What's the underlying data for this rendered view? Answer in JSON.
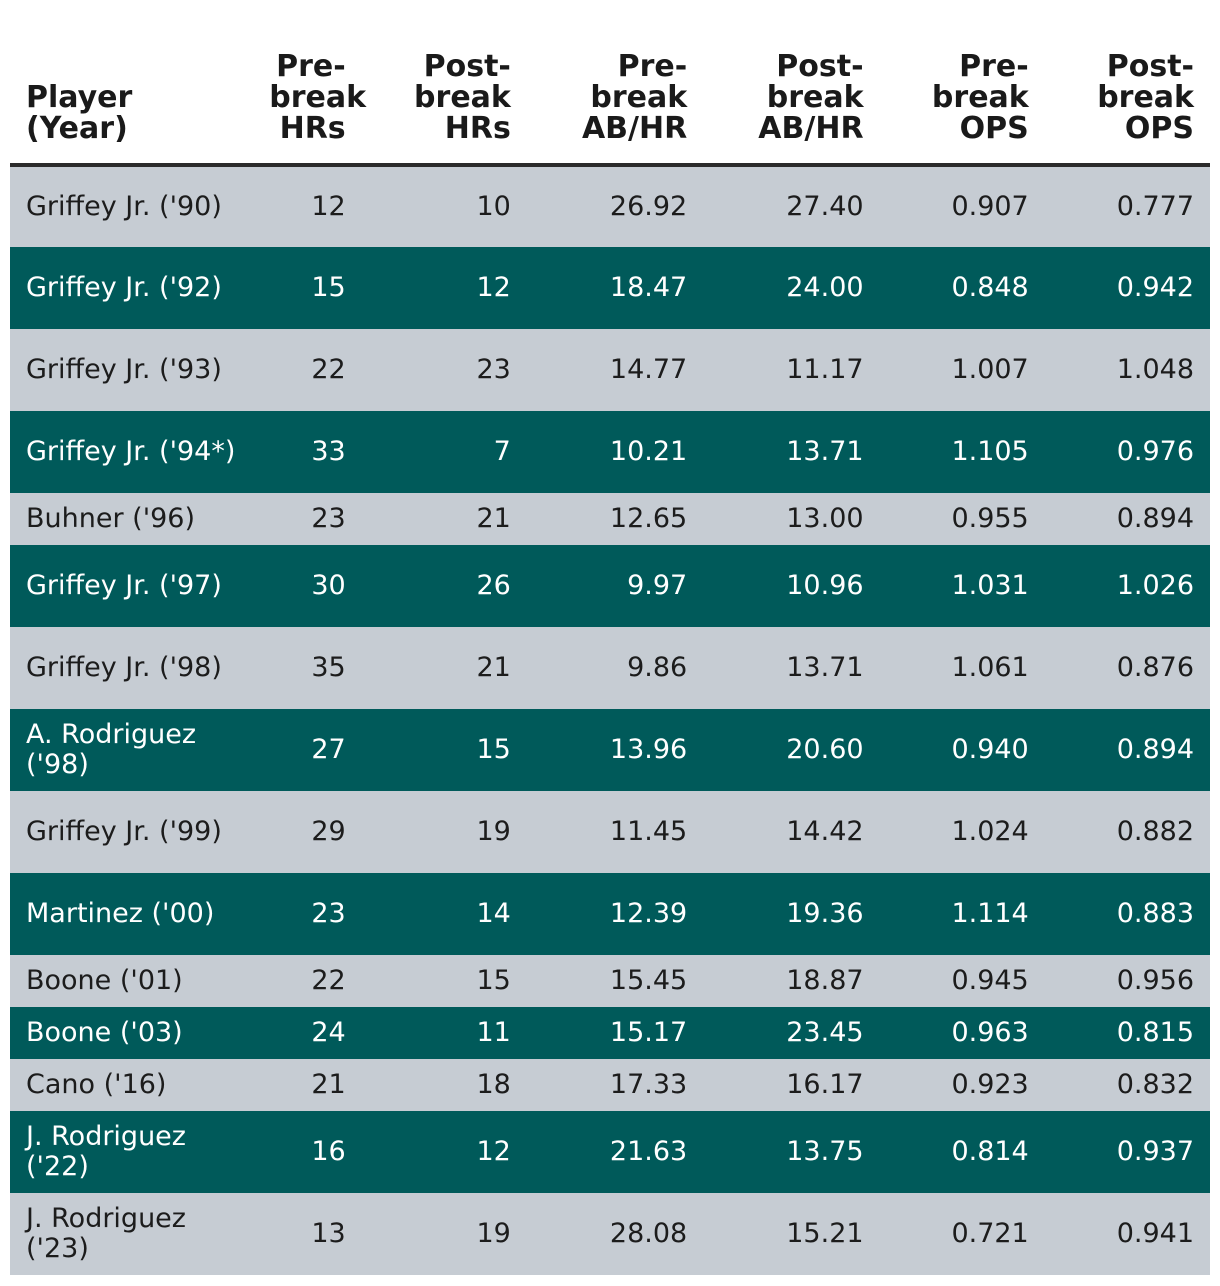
{
  "table": {
    "headers": [
      {
        "lines": [
          "Player",
          "(Year)"
        ]
      },
      {
        "lines": [
          "Pre-",
          "break",
          "HRs"
        ]
      },
      {
        "lines": [
          "Post-",
          "break",
          "HRs"
        ]
      },
      {
        "lines": [
          "Pre-",
          "break",
          "AB/HR"
        ]
      },
      {
        "lines": [
          "Post-",
          "break",
          "AB/HR"
        ]
      },
      {
        "lines": [
          "Pre-",
          "break",
          "OPS"
        ]
      },
      {
        "lines": [
          "Post-",
          "break",
          "OPS"
        ]
      }
    ],
    "rows": [
      {
        "player": "Griffey Jr. ('90)",
        "cells": [
          "12",
          "10",
          "26.92",
          "27.40",
          "0.907",
          "0.777"
        ]
      },
      {
        "player": "Griffey Jr. ('92)",
        "cells": [
          "15",
          "12",
          "18.47",
          "24.00",
          "0.848",
          "0.942"
        ]
      },
      {
        "player": "Griffey Jr. ('93)",
        "cells": [
          "22",
          "23",
          "14.77",
          "11.17",
          "1.007",
          "1.048"
        ]
      },
      {
        "player": "Griffey Jr. ('94*)",
        "cells": [
          "33",
          "7",
          "10.21",
          "13.71",
          "1.105",
          "0.976"
        ]
      },
      {
        "player": "Buhner ('96)",
        "cells": [
          "23",
          "21",
          "12.65",
          "13.00",
          "0.955",
          "0.894"
        ]
      },
      {
        "player": "Griffey Jr. ('97)",
        "cells": [
          "30",
          "26",
          "9.97",
          "10.96",
          "1.031",
          "1.026"
        ]
      },
      {
        "player": "Griffey Jr. ('98)",
        "cells": [
          "35",
          "21",
          "9.86",
          "13.71",
          "1.061",
          "0.876"
        ]
      },
      {
        "player": "A. Rodriguez ('98)",
        "cells": [
          "27",
          "15",
          "13.96",
          "20.60",
          "0.940",
          "0.894"
        ]
      },
      {
        "player": "Griffey Jr. ('99)",
        "cells": [
          "29",
          "19",
          "11.45",
          "14.42",
          "1.024",
          "0.882"
        ]
      },
      {
        "player": "Martinez ('00)",
        "cells": [
          "23",
          "14",
          "12.39",
          "19.36",
          "1.114",
          "0.883"
        ]
      },
      {
        "player": "Boone ('01)",
        "cells": [
          "22",
          "15",
          "15.45",
          "18.87",
          "0.945",
          "0.956"
        ]
      },
      {
        "player": "Boone ('03)",
        "cells": [
          "24",
          "11",
          "15.17",
          "23.45",
          "0.963",
          "0.815"
        ]
      },
      {
        "player": "Cano ('16)",
        "cells": [
          "21",
          "18",
          "17.33",
          "16.17",
          "0.923",
          "0.832"
        ]
      },
      {
        "player": "J. Rodriguez ('22)",
        "cells": [
          "16",
          "12",
          "21.63",
          "13.75",
          "0.814",
          "0.937"
        ]
      },
      {
        "player": "J. Rodriguez ('23)",
        "cells": [
          "13",
          "19",
          "28.08",
          "15.21",
          "0.721",
          "0.941"
        ]
      }
    ]
  },
  "colors": {
    "row_light": "#c6ccd3",
    "row_dark": "#005a5a",
    "header_rule": "#2b2b2b"
  }
}
